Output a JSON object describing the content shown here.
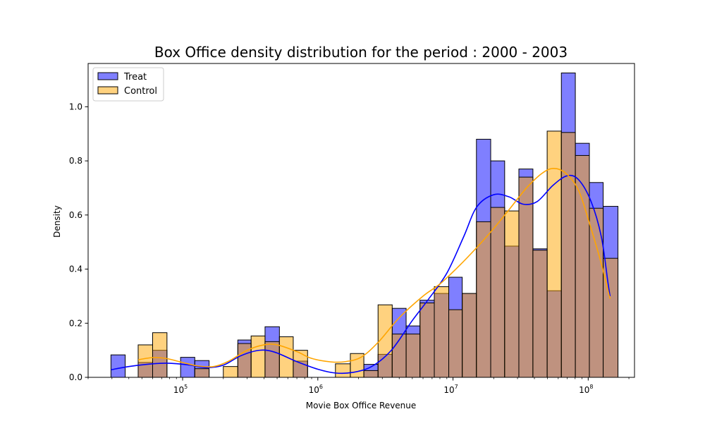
{
  "chart_data": {
    "type": "histogram",
    "title": "Box Office density distribution for the period : 2000 - 2003",
    "xlabel": "Movie Box Office Revenue",
    "ylabel": "Density",
    "xscale": "log",
    "xlim": [
      20000,
      220000000
    ],
    "ylim": [
      0,
      1.16
    ],
    "x_ticks": [
      {
        "value": 100000,
        "base": "10",
        "exp": "5"
      },
      {
        "value": 1000000,
        "base": "10",
        "exp": "6"
      },
      {
        "value": 10000000,
        "base": "10",
        "exp": "7"
      },
      {
        "value": 100000000,
        "base": "10",
        "exp": "8"
      }
    ],
    "y_ticks": [
      0.0,
      0.2,
      0.4,
      0.6,
      0.8,
      1.0
    ],
    "y_tick_labels": [
      "0.0",
      "0.2",
      "0.4",
      "0.6",
      "0.8",
      "1.0"
    ],
    "legend": {
      "position": "top-left"
    },
    "series": [
      {
        "name": "Treat",
        "color": "#0000ff",
        "bins": [
          {
            "x0": 29500,
            "x1": 37600,
            "density": 0.083
          },
          {
            "x0": 46900,
            "x1": 60000,
            "density": 0.055
          },
          {
            "x0": 60000,
            "x1": 76600,
            "density": 0.1
          },
          {
            "x0": 96600,
            "x1": 123000,
            "density": 0.074
          },
          {
            "x0": 123000,
            "x1": 157000,
            "density": 0.062
          },
          {
            "x0": 256000,
            "x1": 321000,
            "density": 0.138
          },
          {
            "x0": 407000,
            "x1": 520000,
            "density": 0.187
          },
          {
            "x0": 658000,
            "x1": 840000,
            "density": 0.06
          },
          {
            "x0": 2190000,
            "x1": 2790000,
            "density": 0.048
          },
          {
            "x0": 2790000,
            "x1": 3550000,
            "density": 0.085
          },
          {
            "x0": 3550000,
            "x1": 4500000,
            "density": 0.255
          },
          {
            "x0": 4500000,
            "x1": 5700000,
            "density": 0.19
          },
          {
            "x0": 5700000,
            "x1": 7270000,
            "density": 0.285
          },
          {
            "x0": 7270000,
            "x1": 9300000,
            "density": 0.31
          },
          {
            "x0": 9300000,
            "x1": 11700000,
            "density": 0.37
          },
          {
            "x0": 11700000,
            "x1": 14900000,
            "density": 0.31
          },
          {
            "x0": 14900000,
            "x1": 19000000,
            "density": 0.88
          },
          {
            "x0": 19000000,
            "x1": 24100000,
            "density": 0.8
          },
          {
            "x0": 24100000,
            "x1": 30700000,
            "density": 0.485
          },
          {
            "x0": 30700000,
            "x1": 39000000,
            "density": 0.77
          },
          {
            "x0": 39000000,
            "x1": 49700000,
            "density": 0.475
          },
          {
            "x0": 49700000,
            "x1": 63300000,
            "density": 0.32
          },
          {
            "x0": 63300000,
            "x1": 80300000,
            "density": 1.125
          },
          {
            "x0": 80300000,
            "x1": 102000000,
            "density": 0.865
          },
          {
            "x0": 102000000,
            "x1": 129000000,
            "density": 0.72
          },
          {
            "x0": 129000000,
            "x1": 166000000,
            "density": 0.632
          }
        ],
        "kde": [
          [
            29500,
            0.028
          ],
          [
            40000,
            0.04
          ],
          [
            60000,
            0.05
          ],
          [
            80000,
            0.052
          ],
          [
            110000,
            0.046
          ],
          [
            150000,
            0.036
          ],
          [
            200000,
            0.045
          ],
          [
            270000,
            0.08
          ],
          [
            370000,
            0.1
          ],
          [
            480000,
            0.093
          ],
          [
            700000,
            0.058
          ],
          [
            1000000,
            0.03
          ],
          [
            1350000,
            0.016
          ],
          [
            1800000,
            0.018
          ],
          [
            2500000,
            0.04
          ],
          [
            3500000,
            0.1
          ],
          [
            5000000,
            0.21
          ],
          [
            6500000,
            0.285
          ],
          [
            9000000,
            0.385
          ],
          [
            12000000,
            0.52
          ],
          [
            15000000,
            0.63
          ],
          [
            20000000,
            0.675
          ],
          [
            26000000,
            0.667
          ],
          [
            33000000,
            0.64
          ],
          [
            42000000,
            0.65
          ],
          [
            55000000,
            0.71
          ],
          [
            70000000,
            0.745
          ],
          [
            85000000,
            0.73
          ],
          [
            105000000,
            0.65
          ],
          [
            125000000,
            0.52
          ],
          [
            140000000,
            0.35
          ],
          [
            145000000,
            0.3
          ]
        ]
      },
      {
        "name": "Control",
        "color": "#ffa500",
        "bins": [
          {
            "x0": 46900,
            "x1": 60000,
            "density": 0.12
          },
          {
            "x0": 60000,
            "x1": 76600,
            "density": 0.165
          },
          {
            "x0": 123000,
            "x1": 157000,
            "density": 0.032
          },
          {
            "x0": 200000,
            "x1": 256000,
            "density": 0.04
          },
          {
            "x0": 256000,
            "x1": 321000,
            "density": 0.125
          },
          {
            "x0": 321000,
            "x1": 407000,
            "density": 0.153
          },
          {
            "x0": 407000,
            "x1": 520000,
            "density": 0.132
          },
          {
            "x0": 520000,
            "x1": 658000,
            "density": 0.15
          },
          {
            "x0": 658000,
            "x1": 840000,
            "density": 0.1
          },
          {
            "x0": 1350000,
            "x1": 1740000,
            "density": 0.05
          },
          {
            "x0": 1740000,
            "x1": 2190000,
            "density": 0.088
          },
          {
            "x0": 2190000,
            "x1": 2790000,
            "density": 0.025
          },
          {
            "x0": 2790000,
            "x1": 3550000,
            "density": 0.268
          },
          {
            "x0": 3550000,
            "x1": 4500000,
            "density": 0.16
          },
          {
            "x0": 4500000,
            "x1": 5700000,
            "density": 0.16
          },
          {
            "x0": 5700000,
            "x1": 7270000,
            "density": 0.275
          },
          {
            "x0": 7270000,
            "x1": 9300000,
            "density": 0.335
          },
          {
            "x0": 9300000,
            "x1": 11700000,
            "density": 0.25
          },
          {
            "x0": 11700000,
            "x1": 14900000,
            "density": 0.31
          },
          {
            "x0": 14900000,
            "x1": 19000000,
            "density": 0.575
          },
          {
            "x0": 19000000,
            "x1": 24100000,
            "density": 0.628
          },
          {
            "x0": 24100000,
            "x1": 30700000,
            "density": 0.615
          },
          {
            "x0": 30700000,
            "x1": 39000000,
            "density": 0.74
          },
          {
            "x0": 39000000,
            "x1": 49700000,
            "density": 0.47
          },
          {
            "x0": 49700000,
            "x1": 63300000,
            "density": 0.91
          },
          {
            "x0": 63300000,
            "x1": 80300000,
            "density": 0.905
          },
          {
            "x0": 80300000,
            "x1": 102000000,
            "density": 0.82
          },
          {
            "x0": 102000000,
            "x1": 129000000,
            "density": 0.625
          },
          {
            "x0": 129000000,
            "x1": 166000000,
            "density": 0.44
          }
        ],
        "kde": [
          [
            46900,
            0.065
          ],
          [
            60000,
            0.073
          ],
          [
            75000,
            0.07
          ],
          [
            100000,
            0.055
          ],
          [
            130000,
            0.042
          ],
          [
            170000,
            0.04
          ],
          [
            220000,
            0.06
          ],
          [
            300000,
            0.1
          ],
          [
            400000,
            0.12
          ],
          [
            500000,
            0.12
          ],
          [
            700000,
            0.095
          ],
          [
            900000,
            0.07
          ],
          [
            1250000,
            0.057
          ],
          [
            1600000,
            0.058
          ],
          [
            2100000,
            0.075
          ],
          [
            2800000,
            0.13
          ],
          [
            4000000,
            0.22
          ],
          [
            6000000,
            0.3
          ],
          [
            8000000,
            0.345
          ],
          [
            11000000,
            0.41
          ],
          [
            15000000,
            0.48
          ],
          [
            20000000,
            0.55
          ],
          [
            26000000,
            0.62
          ],
          [
            35000000,
            0.7
          ],
          [
            45000000,
            0.752
          ],
          [
            55000000,
            0.772
          ],
          [
            68000000,
            0.755
          ],
          [
            85000000,
            0.69
          ],
          [
            105000000,
            0.55
          ],
          [
            125000000,
            0.42
          ],
          [
            145000000,
            0.29
          ]
        ]
      }
    ]
  }
}
